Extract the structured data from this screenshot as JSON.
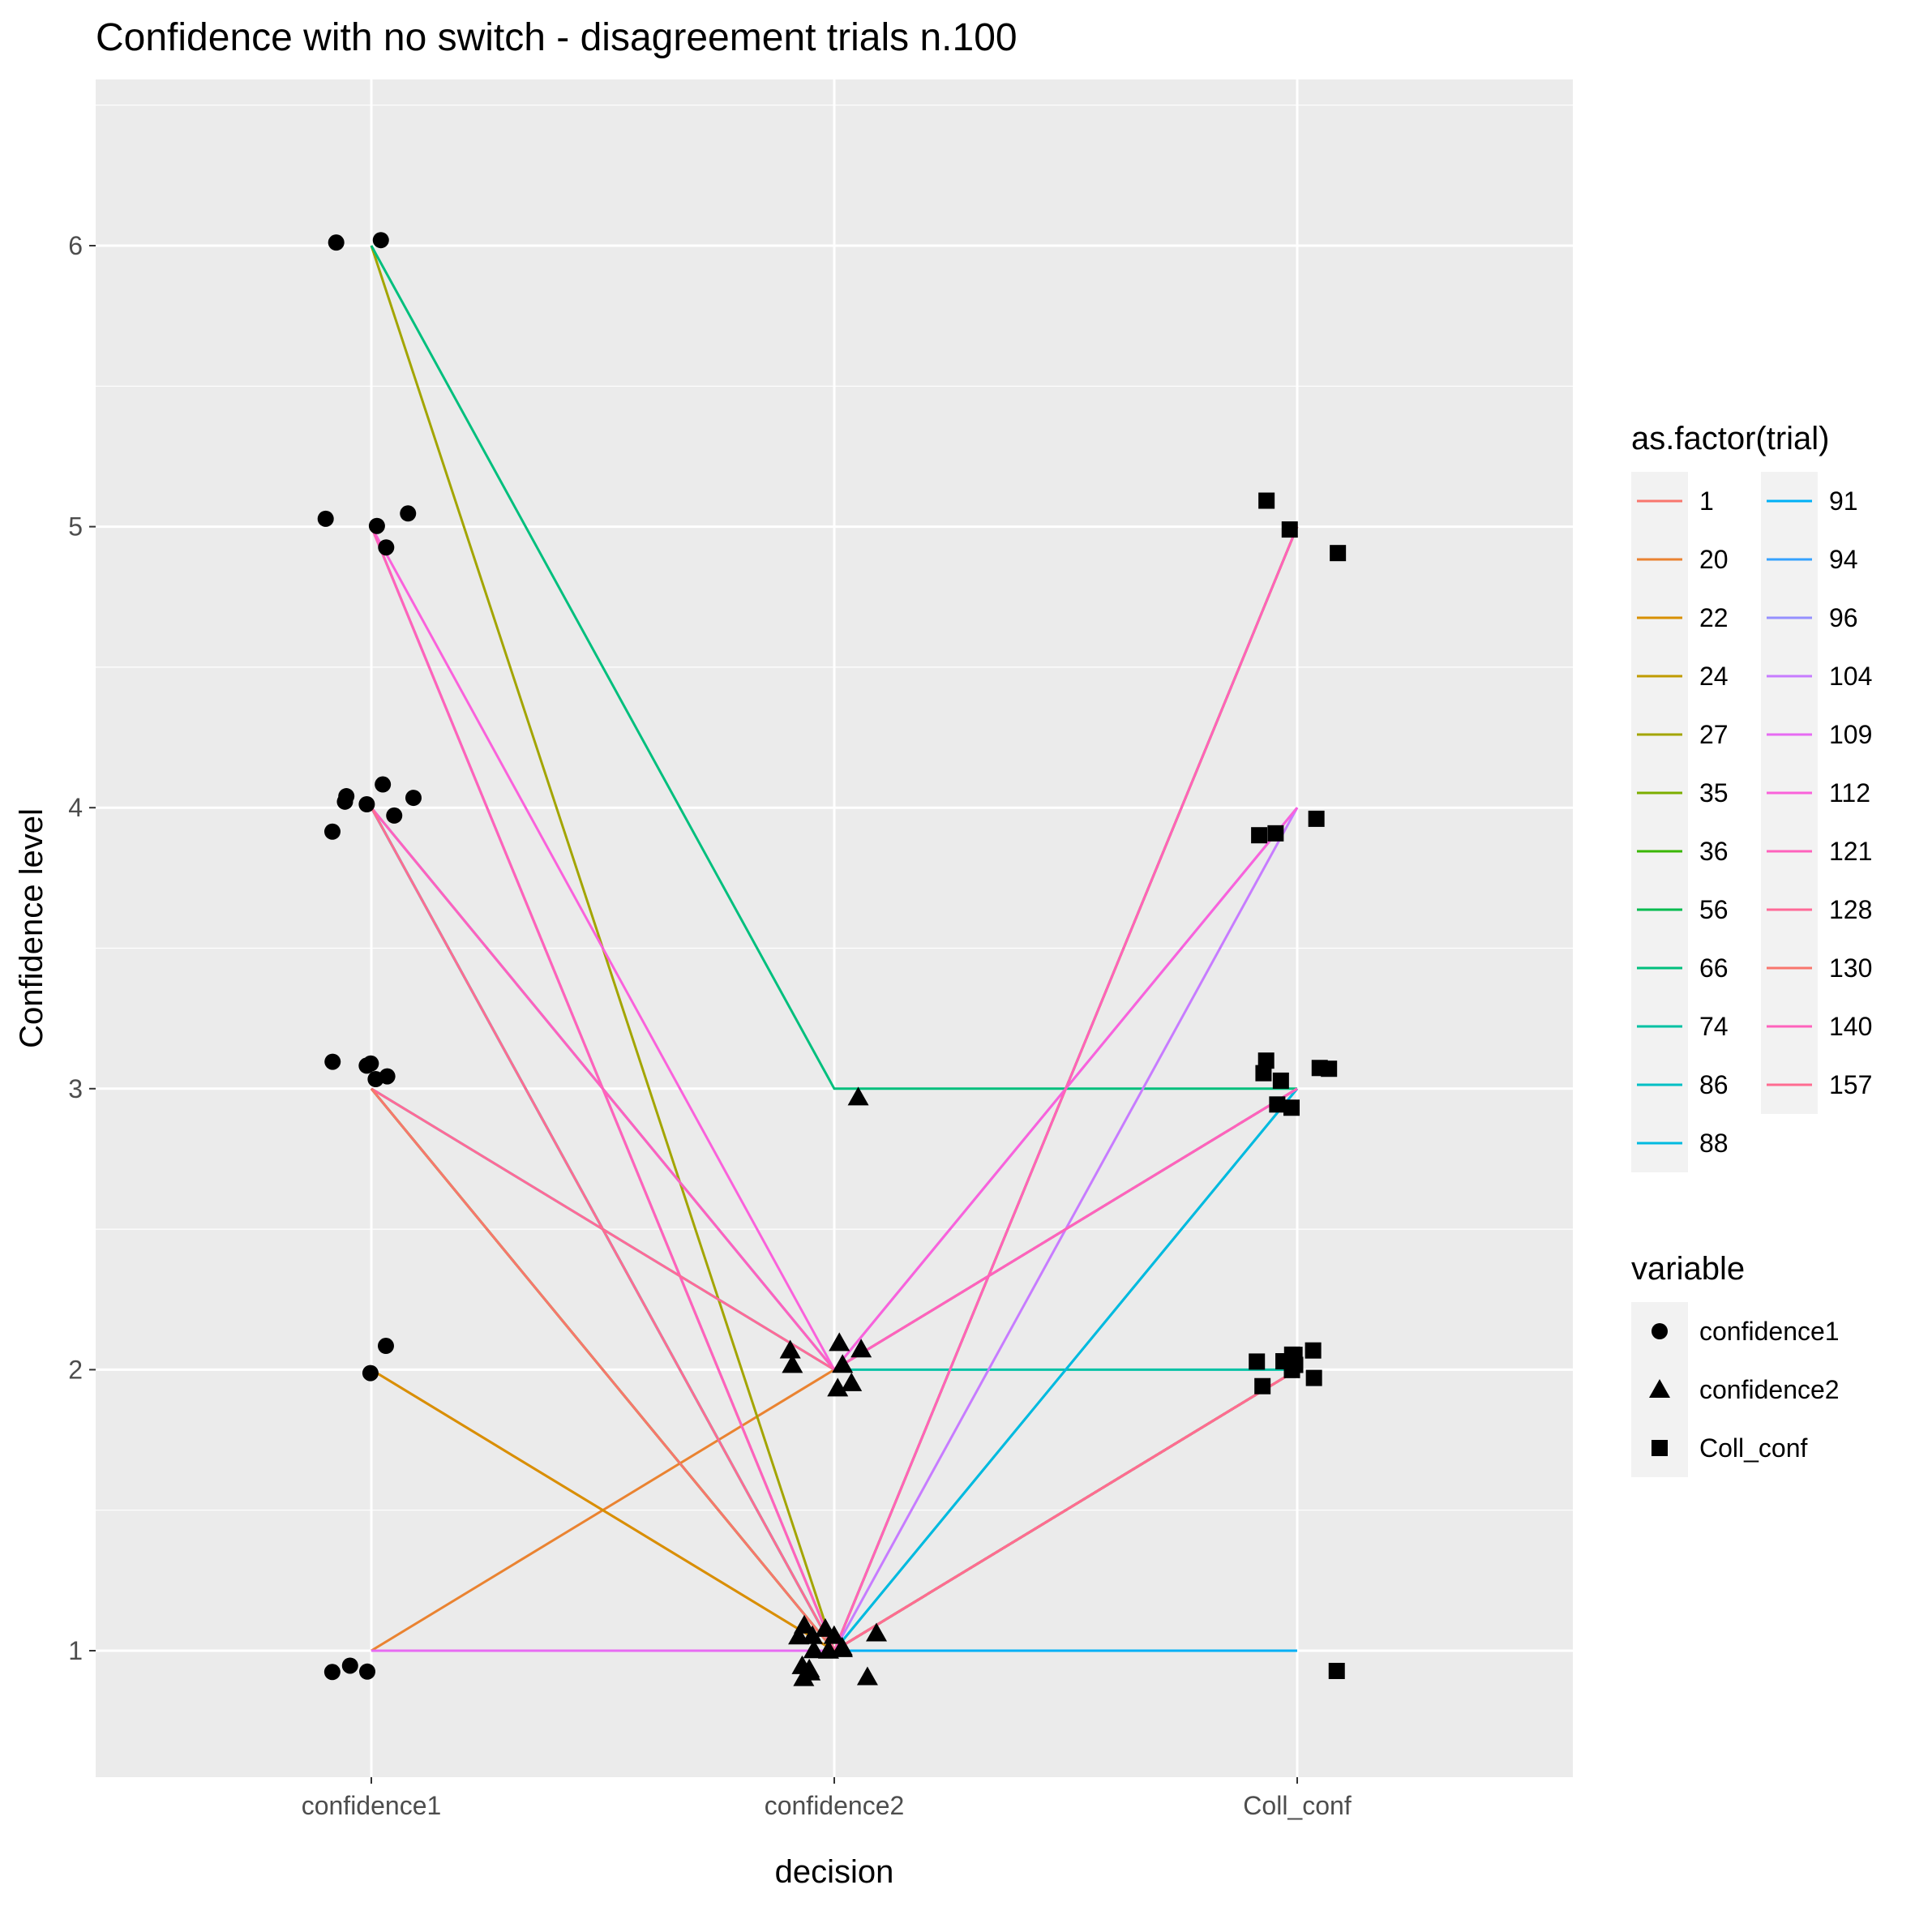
{
  "chart_data": {
    "type": "line",
    "title": "Confidence with no switch - disagreement trials n.100",
    "xlabel": "decision",
    "ylabel": "Confidence level",
    "categories": [
      "confidence1",
      "confidence2",
      "Coll_conf"
    ],
    "ylim": [
      0.4,
      6.6
    ],
    "yticks": [
      1,
      2,
      3,
      4,
      5,
      6
    ],
    "grid": true,
    "background": "#ebebeb",
    "gridline_color": "#ffffff",
    "legend_placement": "right",
    "color_legend": {
      "title": "as.factor(trial)",
      "columns": [
        [
          "1",
          "20",
          "22",
          "24",
          "27",
          "35",
          "36",
          "56",
          "66",
          "74",
          "86",
          "88"
        ],
        [
          "91",
          "94",
          "96",
          "104",
          "109",
          "112",
          "121",
          "128",
          "130",
          "140",
          "157"
        ]
      ]
    },
    "shape_legend": {
      "title": "variable",
      "entries": [
        {
          "label": "confidence1",
          "shape": "circle"
        },
        {
          "label": "confidence2",
          "shape": "triangle"
        },
        {
          "label": "Coll_conf",
          "shape": "square"
        }
      ]
    },
    "series": [
      {
        "name": "1",
        "color": "#F8766D",
        "values": [
          2,
          1,
          2
        ]
      },
      {
        "name": "20",
        "color": "#EA8331",
        "values": [
          1,
          2,
          3
        ]
      },
      {
        "name": "22",
        "color": "#D89000",
        "values": [
          2,
          1,
          2
        ]
      },
      {
        "name": "24",
        "color": "#C09B00",
        "values": [
          5,
          1,
          5
        ]
      },
      {
        "name": "27",
        "color": "#A3A500",
        "values": [
          6,
          1,
          5
        ]
      },
      {
        "name": "35",
        "color": "#7CAE00",
        "values": [
          3,
          1,
          2
        ]
      },
      {
        "name": "36",
        "color": "#39B600",
        "values": [
          3,
          1,
          2
        ]
      },
      {
        "name": "56",
        "color": "#00BB4E",
        "values": [
          4,
          1,
          2
        ]
      },
      {
        "name": "66",
        "color": "#00BF7D",
        "values": [
          6,
          3,
          3
        ]
      },
      {
        "name": "74",
        "color": "#00C1A3",
        "values": [
          3,
          2,
          2
        ]
      },
      {
        "name": "86",
        "color": "#00BFC4",
        "values": [
          4,
          1,
          3
        ]
      },
      {
        "name": "88",
        "color": "#00BAE0",
        "values": [
          4,
          1,
          3
        ]
      },
      {
        "name": "91",
        "color": "#00B0F6",
        "values": [
          1,
          1,
          1
        ]
      },
      {
        "name": "94",
        "color": "#35A2FF",
        "values": [
          4,
          2,
          3
        ]
      },
      {
        "name": "96",
        "color": "#9590FF",
        "values": [
          4,
          2,
          4
        ]
      },
      {
        "name": "104",
        "color": "#C77CFF",
        "values": [
          5,
          1,
          4
        ]
      },
      {
        "name": "109",
        "color": "#E76BF3",
        "values": [
          1,
          1,
          2
        ]
      },
      {
        "name": "112",
        "color": "#FA62DB",
        "values": [
          5,
          2,
          4
        ]
      },
      {
        "name": "121",
        "color": "#FF62BC",
        "values": [
          5,
          1,
          5
        ]
      },
      {
        "name": "128",
        "color": "#FF6A98",
        "values": [
          3,
          2,
          3
        ]
      },
      {
        "name": "130",
        "color": "#F8766D",
        "values": [
          3,
          1,
          2
        ]
      },
      {
        "name": "140",
        "color": "#FF62BC",
        "values": [
          4,
          2,
          3
        ]
      },
      {
        "name": "157",
        "color": "#FF6C91",
        "values": [
          4,
          1,
          2
        ]
      }
    ]
  }
}
